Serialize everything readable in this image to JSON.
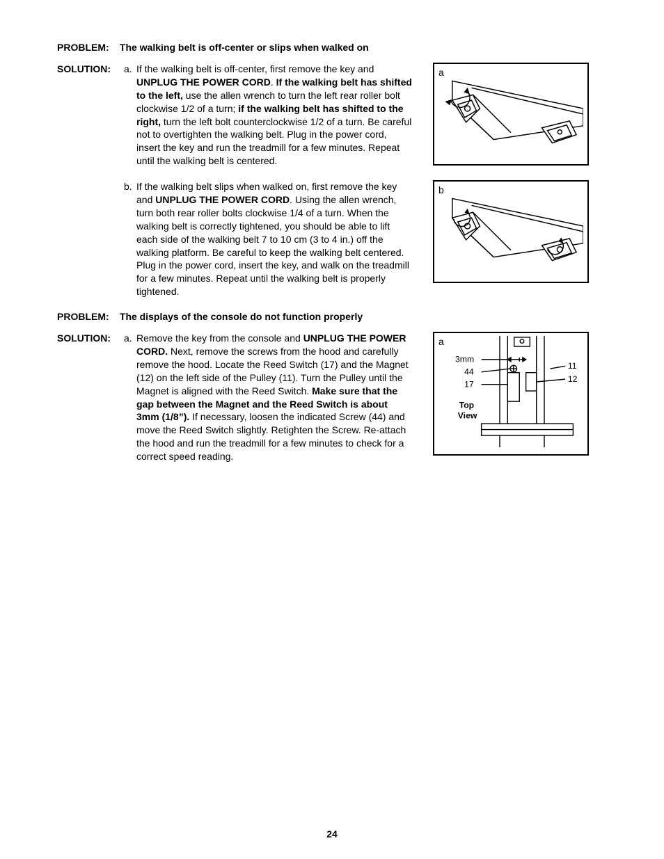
{
  "page_number": "24",
  "problems": [
    {
      "label": "PROBLEM:",
      "title": "The walking belt is off-center or slips when walked on",
      "solution_label": "SOLUTION:",
      "items": [
        {
          "letter": "a.",
          "segments": [
            {
              "t": "If the walking belt is off-center, first remove the key and ",
              "b": false
            },
            {
              "t": "UNPLUG THE POWER CORD",
              "b": true
            },
            {
              "t": ". ",
              "b": false
            },
            {
              "t": "If the walking belt has shifted to the left,",
              "b": true
            },
            {
              "t": " use the allen wrench to turn the left rear roller bolt clockwise 1/2 of a turn; ",
              "b": false
            },
            {
              "t": "if the walking belt has shifted to the right,",
              "b": true
            },
            {
              "t": " turn the left bolt counterclock­wise 1/2 of a turn. Be careful not to overtighten the wal­king belt. Plug in the power cord, insert the key and run the treadmill for a few minutes. Repeat until the walking belt is centered.",
              "b": false
            }
          ]
        },
        {
          "letter": "b.",
          "segments": [
            {
              "t": "If the walking belt slips when walked on, first remove the key and ",
              "b": false
            },
            {
              "t": "UNPLUG THE POWER CORD",
              "b": true
            },
            {
              "t": ". Using the allen wrench, turn both rear roller bolts clockwise 1/4 of a turn. When the walking belt is correctly tightened, you should be able to lift each side of the walking belt 7 to 10 cm (3 to 4 in.) off the walking platform. Be careful to keep the wal­king belt centered. Plug in the power cord, insert the key, and walk on the treadmill for a few minutes. Repeat until the walking belt is properly tightened.",
              "b": false
            }
          ]
        }
      ],
      "figures": [
        {
          "label": "a",
          "type": "roller-single"
        },
        {
          "label": "b",
          "type": "roller-double"
        }
      ]
    },
    {
      "label": "PROBLEM:",
      "title": "The displays of the console do not function properly",
      "solution_label": "SOLUTION:",
      "items": [
        {
          "letter": "a.",
          "segments": [
            {
              "t": "Remove the key from the console and ",
              "b": false
            },
            {
              "t": "UNPLUG THE POWER CORD.",
              "b": true
            },
            {
              "t": " Next, remove the screws from the hood and carefully remove the hood. Locate the Reed Switch (17) and the Magnet (12) on the left side of the Pulley (11). Turn the Pulley until the Magnet is aligned with the Reed Switch. ",
              "b": false
            },
            {
              "t": "Make sure that the gap between the Magnet and the Reed Switch is about 3mm (1/8”).",
              "b": true
            },
            {
              "t": " If necessary, loo­sen the indicated Screw (44) and move the Reed Switch slightly. Retighten the Screw. Re-attach the hood and run the treadmill for a few minutes to check for a correct speed reading.",
              "b": false
            }
          ]
        }
      ],
      "figures": [
        {
          "label": "a",
          "type": "top-view",
          "callouts": {
            "gap": "3mm",
            "n44": "44",
            "n17": "17",
            "n11": "11",
            "n12": "12",
            "view_label": "Top View"
          }
        }
      ]
    }
  ],
  "colors": {
    "text": "#000000",
    "background": "#ffffff",
    "figure_border": "#000000",
    "figure_stroke": "#000000",
    "figure_fill": "#ffffff"
  }
}
